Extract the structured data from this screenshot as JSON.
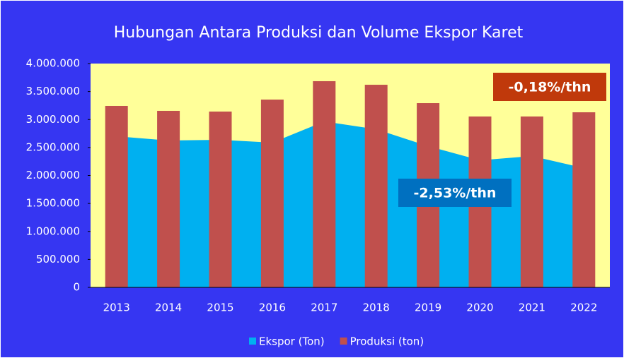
{
  "chart_data": {
    "type": "bar_area",
    "title": "Hubungan Antara Produksi dan Volume Ekspor Karet",
    "categories": [
      "2013",
      "2014",
      "2015",
      "2016",
      "2017",
      "2018",
      "2019",
      "2020",
      "2021",
      "2022"
    ],
    "series": [
      {
        "name": "Ekspor (Ton)",
        "type": "area",
        "color": "#00b0f0",
        "values": [
          2700000,
          2625000,
          2637000,
          2587000,
          2965000,
          2826000,
          2524000,
          2271000,
          2347000,
          2133000
        ]
      },
      {
        "name": "Produksi (ton)",
        "type": "bar",
        "color": "#c0504d",
        "values": [
          3243000,
          3155000,
          3142000,
          3356000,
          3685000,
          3621000,
          3293000,
          3054000,
          3054000,
          3129000
        ]
      }
    ],
    "ylim": [
      0,
      4000000
    ],
    "yticks": [
      0,
      {
        "value": 500000,
        "label": "500.000"
      },
      {
        "value": 1000000,
        "label": "1.000.000"
      },
      {
        "value": 1500000,
        "label": "1.500.000"
      },
      {
        "value": 2000000,
        "label": "2.000.000"
      },
      {
        "value": 2500000,
        "label": "2.500.000"
      },
      {
        "value": 3000000,
        "label": "3.000.000"
      },
      {
        "value": 3500000,
        "label": "3.500.000"
      },
      {
        "value": 4000000,
        "label": "4.000.000"
      }
    ],
    "annotations": [
      {
        "text": "-0,18%/thn",
        "color": "#c0390b"
      },
      {
        "text": "-2,53%/thn",
        "color": "#0070c0"
      }
    ],
    "legend": "bottom"
  }
}
